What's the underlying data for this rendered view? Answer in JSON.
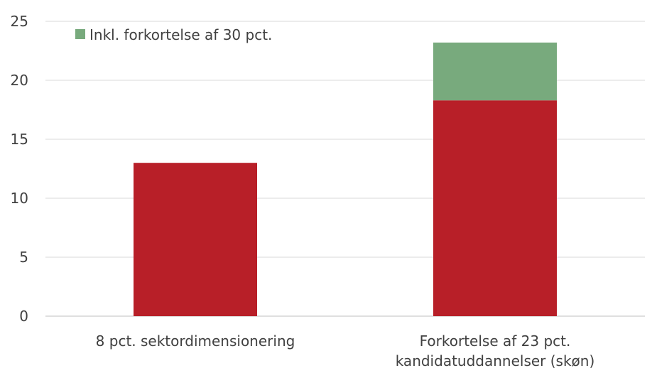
{
  "chart_data": {
    "type": "bar",
    "stacked": true,
    "categories": [
      [
        "8 pct. sektordimensionering"
      ],
      [
        "Forkortelse af 23 pct.",
        "kandidatuddannelser (skøn)"
      ]
    ],
    "series": [
      {
        "name": "",
        "color": "#b81f28",
        "values": [
          13.0,
          18.3
        ]
      },
      {
        "name": "Inkl. forkortelse af 30 pct.",
        "color": "#78aa7d",
        "values": [
          0,
          4.9
        ]
      }
    ],
    "ylim": [
      0,
      25
    ],
    "yticks": [
      0,
      5,
      10,
      15,
      20,
      25
    ],
    "grid": true,
    "legend": "top-left",
    "title": "",
    "xlabel": "",
    "ylabel": ""
  }
}
